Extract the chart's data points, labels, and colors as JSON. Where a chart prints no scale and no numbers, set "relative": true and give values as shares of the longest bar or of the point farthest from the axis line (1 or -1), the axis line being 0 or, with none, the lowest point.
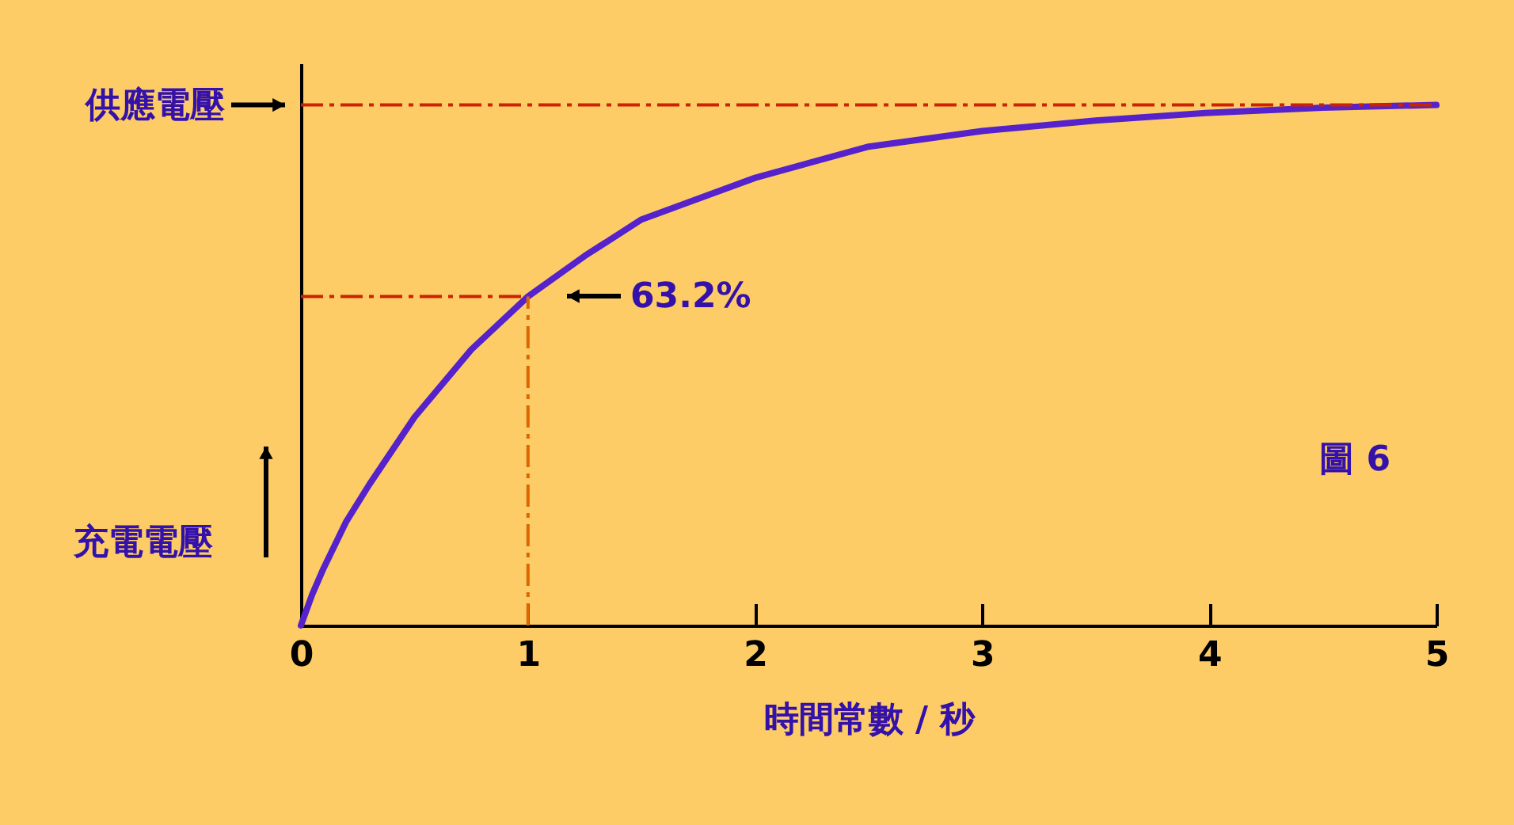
{
  "chart_data": {
    "type": "line",
    "relative": true,
    "xlabel": "時間常數 / 秒",
    "ylabel": "充電電壓",
    "xlim": [
      0,
      5
    ],
    "xticks": [
      0,
      1,
      2,
      3,
      4,
      5
    ],
    "grid": false,
    "marker": "none",
    "line_style": "solid",
    "x": [
      0,
      0.05,
      0.1,
      0.2,
      0.3,
      0.5,
      0.75,
      1,
      1.25,
      1.5,
      2,
      2.5,
      3,
      3.5,
      4,
      4.5,
      5
    ],
    "series": [
      {
        "color": "#5522cc",
        "values": [
          0,
          0.06,
          0.11,
          0.2,
          0.27,
          0.4,
          0.53,
          0.632,
          0.71,
          0.78,
          0.86,
          0.92,
          0.95,
          0.97,
          0.985,
          0.995,
          1
        ]
      }
    ],
    "ref_lines": [
      {
        "axis": "y",
        "value": 1,
        "label": "供應電壓",
        "color": "#cc2200",
        "line_style": "dashed"
      },
      {
        "axis": "y",
        "value": 0.632,
        "label": null,
        "color": "#cc2200",
        "line_style": "dashed"
      },
      {
        "axis": "x",
        "value": 1,
        "label": null,
        "color": "#dd6600",
        "line_style": "dashed"
      }
    ],
    "annotations": [
      "63.2%",
      "圖 6"
    ]
  }
}
